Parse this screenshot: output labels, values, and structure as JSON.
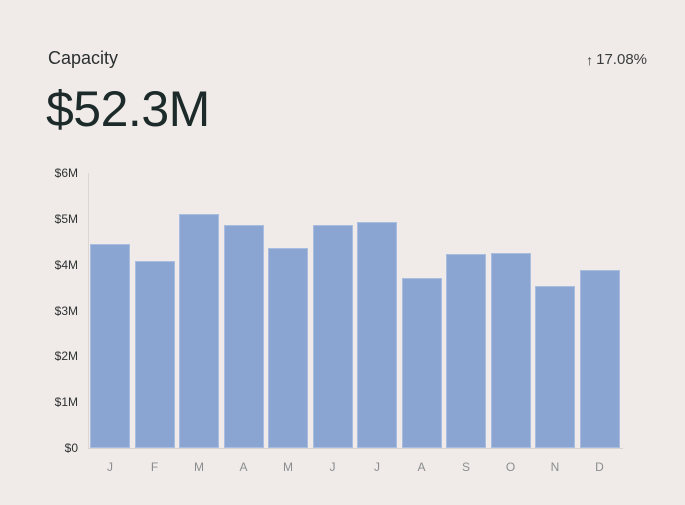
{
  "card": {
    "title": "Capacity",
    "value": "$52.3M",
    "delta": {
      "arrow": "↑",
      "text": "17.08%"
    },
    "bar_color": "#8ba5d3"
  },
  "chart_data": {
    "type": "bar",
    "title": "Capacity",
    "xlabel": "",
    "ylabel": "",
    "categories": [
      "J",
      "F",
      "M",
      "A",
      "M",
      "J",
      "J",
      "A",
      "S",
      "O",
      "N",
      "D"
    ],
    "values": [
      4.45,
      4.08,
      5.11,
      4.87,
      4.37,
      4.87,
      4.93,
      3.71,
      4.24,
      4.26,
      3.54,
      3.89
    ],
    "unit": "$M",
    "ylim": [
      0,
      6
    ],
    "yticks": [
      "$0",
      "$1M",
      "$2M",
      "$3M",
      "$4M",
      "$5M",
      "$6M"
    ],
    "grid": false,
    "legend": null
  }
}
